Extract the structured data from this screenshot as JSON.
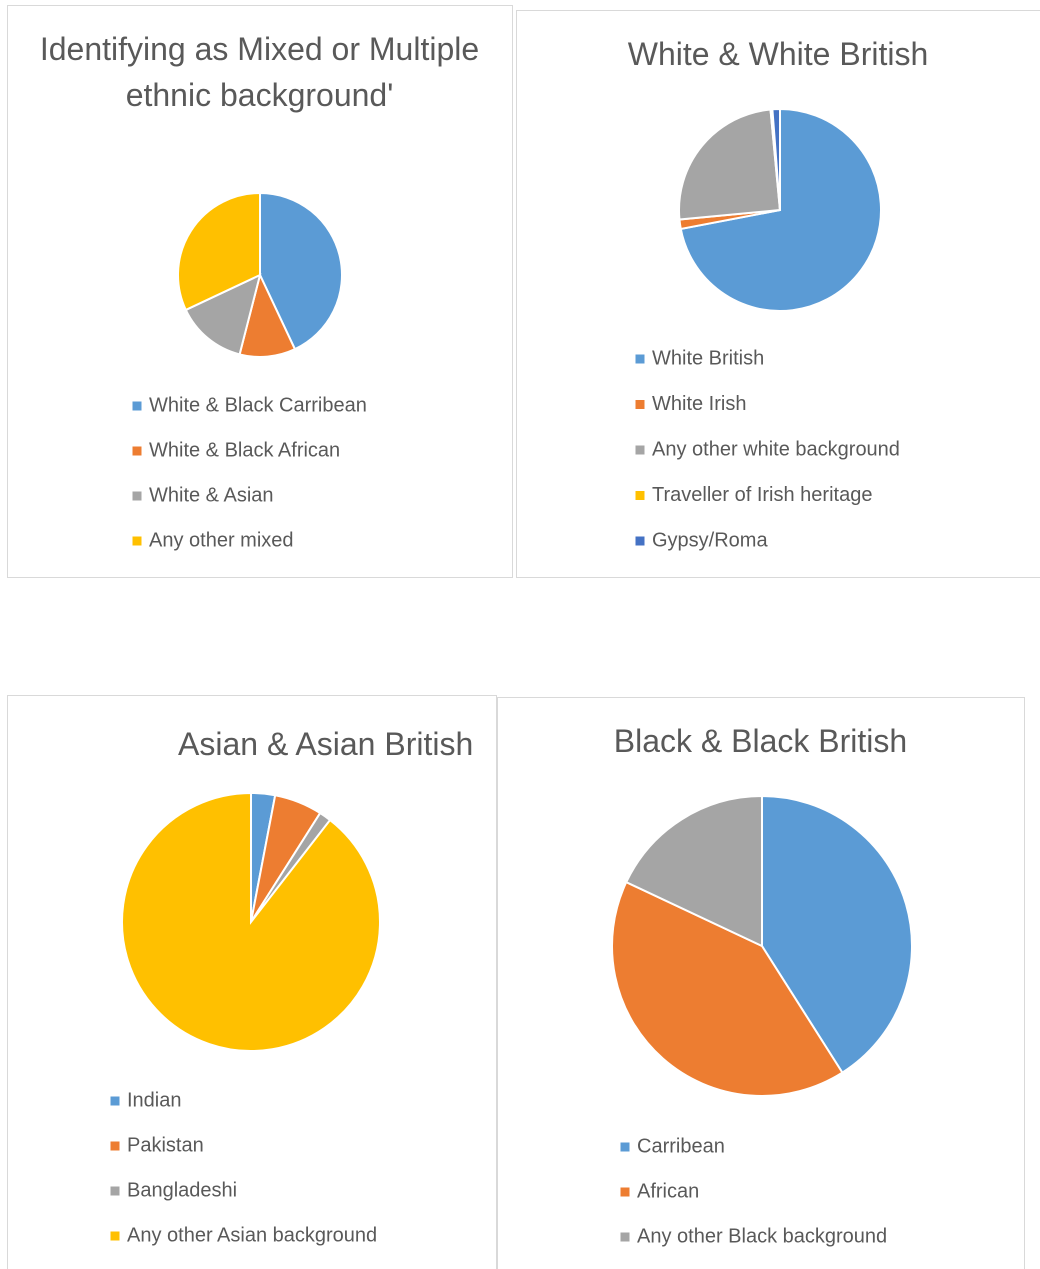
{
  "chart_data": [
    {
      "type": "pie",
      "title": "Identifying as Mixed or Multiple ethnic background'",
      "categories": [
        "White & Black Carribean",
        "White & Black African",
        "White & Asian",
        "Any other mixed"
      ],
      "values": [
        43,
        11,
        14,
        32
      ],
      "colors": [
        "#5b9bd5",
        "#ed7d31",
        "#a5a5a5",
        "#ffc000"
      ]
    },
    {
      "type": "pie",
      "title": "White & White British",
      "categories": [
        "White British",
        "White Irish",
        "Any other white background",
        "Traveller of Irish heritage",
        "Gypsy/Roma"
      ],
      "values": [
        72,
        1.5,
        25,
        0.3,
        1.2
      ],
      "colors": [
        "#5b9bd5",
        "#ed7d31",
        "#a5a5a5",
        "#ffc000",
        "#4472c4"
      ]
    },
    {
      "type": "pie",
      "title": "Asian & Asian British",
      "categories": [
        "Indian",
        "Pakistan",
        "Bangladeshi",
        "Any other Asian background"
      ],
      "values": [
        3,
        6,
        1.5,
        89.5
      ],
      "colors": [
        "#5b9bd5",
        "#ed7d31",
        "#a5a5a5",
        "#ffc000"
      ]
    },
    {
      "type": "pie",
      "title": "Black & Black British",
      "categories": [
        "Carribean",
        "African",
        "Any other Black background"
      ],
      "values": [
        41,
        41,
        18
      ],
      "colors": [
        "#5b9bd5",
        "#ed7d31",
        "#a5a5a5"
      ]
    }
  ]
}
